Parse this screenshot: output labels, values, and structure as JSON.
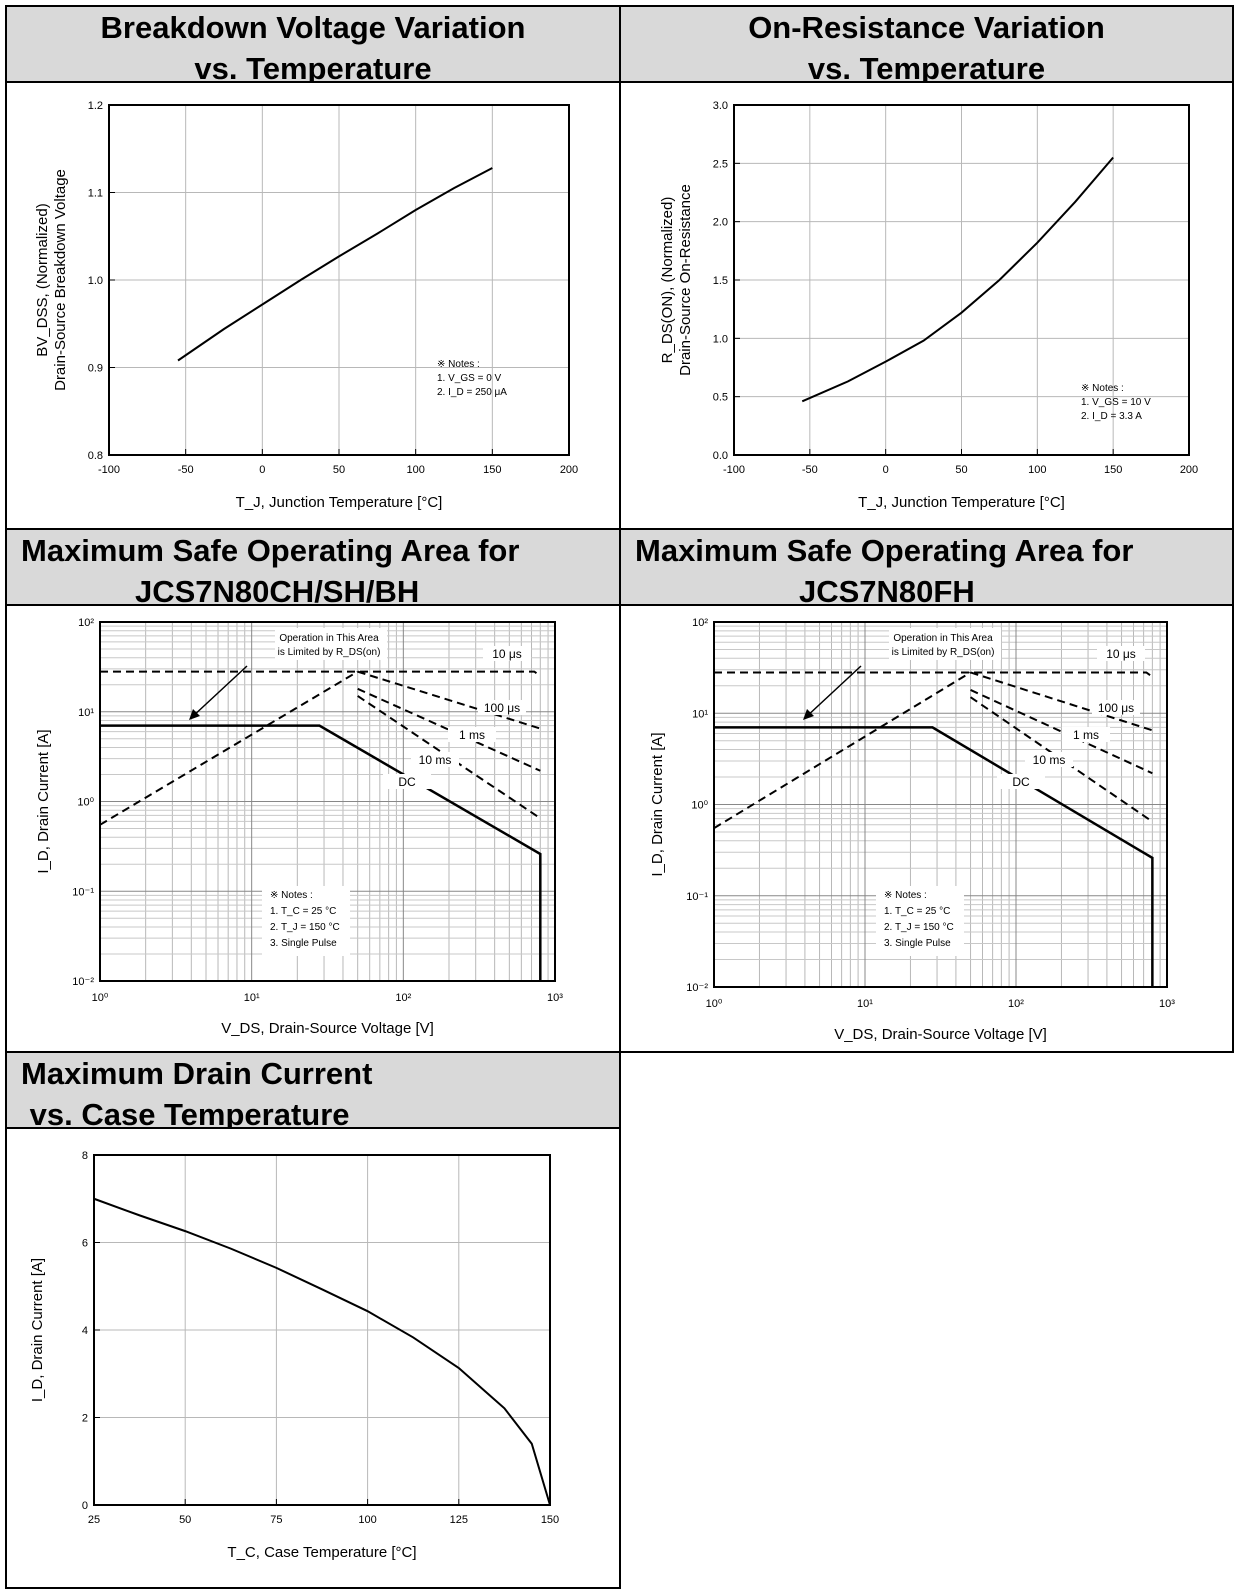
{
  "headers": {
    "h1": [
      "Breakdown Voltage Variation",
      "vs. Temperature"
    ],
    "h2": [
      "On-Resistance Variation",
      "vs. Temperature"
    ],
    "h3": [
      "Maximum Safe Operating Area for",
      "JCS7N80CH/SH/BH"
    ],
    "h4": [
      "Maximum Safe Operating Area for",
      "JCS7N80FH"
    ],
    "h5": [
      "Maximum Drain Current",
      " vs. Case Temperature"
    ]
  },
  "chart_data": [
    {
      "type": "line",
      "title": "Breakdown Voltage Variation vs. Temperature",
      "xlabel": "T_J, Junction Temperature [°C]",
      "ylabel": "BV_DSS, (Normalized) Drain-Source Breakdown Voltage",
      "xlim": [
        -100,
        200
      ],
      "ylim": [
        0.8,
        1.2
      ],
      "xticks": [
        "-100",
        "-50",
        "0",
        "50",
        "100",
        "150",
        "200"
      ],
      "yticks": [
        "0.8",
        "0.9",
        "1.0",
        "1.1",
        "1.2"
      ],
      "x": [
        -55,
        -25,
        0,
        25,
        50,
        75,
        100,
        125,
        150
      ],
      "y": [
        0.908,
        0.944,
        0.972,
        1.0,
        1.027,
        1.053,
        1.08,
        1.105,
        1.128
      ],
      "grid": true,
      "notes": [
        "※ Notes :",
        "1. V_GS = 0 V",
        "2. I_D = 250 μA"
      ]
    },
    {
      "type": "line",
      "title": "On-Resistance Variation vs. Temperature",
      "xlabel": "T_J, Junction Temperature [°C]",
      "ylabel": "R_DS(ON), (Normalized) Drain-Source On-Resistance",
      "xlim": [
        -100,
        200
      ],
      "ylim": [
        0.0,
        3.0
      ],
      "xticks": [
        "-100",
        "-50",
        "0",
        "50",
        "100",
        "150",
        "200"
      ],
      "yticks": [
        "0.0",
        "0.5",
        "1.0",
        "1.5",
        "2.0",
        "2.5",
        "3.0"
      ],
      "x": [
        -55,
        -25,
        0,
        25,
        50,
        75,
        100,
        125,
        150
      ],
      "y": [
        0.46,
        0.63,
        0.8,
        0.98,
        1.22,
        1.5,
        1.82,
        2.17,
        2.55
      ],
      "grid": true,
      "notes": [
        "※ Notes :",
        "1. V_GS = 10 V",
        "2. I_D = 3.3 A"
      ]
    },
    {
      "type": "line",
      "title": "Maximum Safe Operating Area for JCS7N80CH/SH/BH",
      "xlabel": "V_DS, Drain-Source Voltage [V]",
      "ylabel": "I_D, Drain Current [A]",
      "xscale": "log",
      "yscale": "log",
      "xlim": [
        1,
        1000
      ],
      "ylim": [
        0.01,
        100
      ],
      "xticks": [
        "10⁰",
        "10¹",
        "10²",
        "10³"
      ],
      "yticks": [
        "10⁻²",
        "10⁻¹",
        "10⁰",
        "10¹",
        "10²"
      ],
      "series": [
        {
          "name": "R_DS(on) limit",
          "x": [
            1,
            50
          ],
          "y": [
            0.55,
            28
          ]
        },
        {
          "name": "10 μs",
          "x": [
            1,
            730,
            800
          ],
          "y": [
            28,
            28,
            25
          ]
        },
        {
          "name": "100 μs",
          "x": [
            50,
            800
          ],
          "y": [
            28,
            6.5
          ]
        },
        {
          "name": "1 ms",
          "x": [
            50,
            800
          ],
          "y": [
            18,
            2.2
          ]
        },
        {
          "name": "10 ms",
          "x": [
            50,
            800
          ],
          "y": [
            15,
            0.65
          ]
        },
        {
          "name": "DC",
          "x": [
            1,
            28,
            800,
            800
          ],
          "y": [
            7,
            7,
            0.26,
            0.01
          ]
        }
      ],
      "grid": true,
      "annotation": [
        "Operation in This Area",
        "is Limited by R_DS(on)"
      ],
      "notes": [
        "※ Notes :",
        "1. T_C = 25 °C",
        "2. T_J = 150 °C",
        "3. Single Pulse"
      ]
    },
    {
      "type": "line",
      "title": "Maximum Safe Operating Area for JCS7N80FH",
      "xlabel": "V_DS, Drain-Source Voltage [V]",
      "ylabel": "I_D, Drain Current [A]",
      "xscale": "log",
      "yscale": "log",
      "xlim": [
        1,
        1000
      ],
      "ylim": [
        0.01,
        100
      ],
      "xticks": [
        "10⁰",
        "10¹",
        "10²",
        "10³"
      ],
      "yticks": [
        "10⁻²",
        "10⁻¹",
        "10⁰",
        "10¹",
        "10²"
      ],
      "series": [
        {
          "name": "R_DS(on) limit",
          "x": [
            1,
            50
          ],
          "y": [
            0.55,
            28
          ]
        },
        {
          "name": "10 μs",
          "x": [
            1,
            730,
            800
          ],
          "y": [
            28,
            28,
            25
          ]
        },
        {
          "name": "100 μs",
          "x": [
            50,
            800
          ],
          "y": [
            28,
            6.5
          ]
        },
        {
          "name": "1 ms",
          "x": [
            50,
            800
          ],
          "y": [
            18,
            2.2
          ]
        },
        {
          "name": "10 ms",
          "x": [
            50,
            800
          ],
          "y": [
            15,
            0.65
          ]
        },
        {
          "name": "DC",
          "x": [
            1,
            28,
            800,
            800
          ],
          "y": [
            7,
            7,
            0.26,
            0.01
          ]
        }
      ],
      "grid": true,
      "annotation": [
        "Operation in This Area",
        "is Limited by R_DS(on)"
      ],
      "notes": [
        "※ Notes :",
        "1. T_C = 25 °C",
        "2. T_J = 150 °C",
        "3. Single Pulse"
      ]
    },
    {
      "type": "line",
      "title": "Maximum Drain Current vs. Case Temperature",
      "xlabel": "T_C, Case Temperature [°C]",
      "ylabel": "I_D, Drain Current [A]",
      "xlim": [
        25,
        150
      ],
      "ylim": [
        0,
        8
      ],
      "xticks": [
        "25",
        "50",
        "75",
        "100",
        "125",
        "150"
      ],
      "yticks": [
        "0",
        "2",
        "4",
        "6",
        "8"
      ],
      "x": [
        25,
        37.5,
        50,
        62.5,
        75,
        87.5,
        100,
        112.5,
        125,
        137.5,
        145,
        150
      ],
      "y": [
        7.0,
        6.62,
        6.26,
        5.86,
        5.42,
        4.93,
        4.43,
        3.83,
        3.13,
        2.21,
        1.4,
        0.0
      ],
      "grid": true
    }
  ]
}
